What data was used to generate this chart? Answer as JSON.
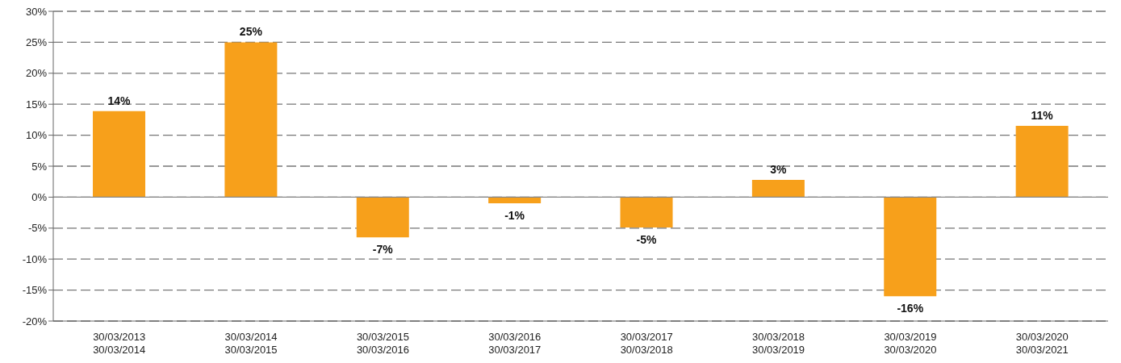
{
  "chart_data": {
    "type": "bar",
    "categories": [
      "30/03/2013\n30/03/2014",
      "30/03/2014\n30/03/2015",
      "30/03/2015\n30/03/2016",
      "30/03/2016\n30/03/2017",
      "30/03/2017\n30/03/2018",
      "30/03/2018\n30/03/2019",
      "30/03/2019\n30/03/2020",
      "30/03/2020\n30/03/2021"
    ],
    "values": [
      13.9,
      25,
      -6.5,
      -1,
      -4.9,
      2.8,
      -16,
      11.5
    ],
    "value_labels": [
      "14%",
      "25%",
      "-7%",
      "-1%",
      "-5%",
      "3%",
      "-16%",
      "11%"
    ],
    "color": "#f7a01b",
    "ylim": [
      -20,
      30
    ],
    "yticks": [
      {
        "value": -20,
        "label": "-20%"
      },
      {
        "value": -15,
        "label": "-15%"
      },
      {
        "value": -10,
        "label": "-10%"
      },
      {
        "value": -5,
        "label": "-5%"
      },
      {
        "value": 0,
        "label": "0%"
      },
      {
        "value": 5,
        "label": "5%"
      },
      {
        "value": 10,
        "label": "10%"
      },
      {
        "value": 15,
        "label": "15%"
      },
      {
        "value": 20,
        "label": "20%"
      },
      {
        "value": 25,
        "label": "25%"
      },
      {
        "value": 30,
        "label": "30%"
      }
    ],
    "ref_lines": [
      {
        "axis": "y",
        "value": 0,
        "color": "#888888"
      }
    ],
    "grid": "y",
    "legend": false
  }
}
